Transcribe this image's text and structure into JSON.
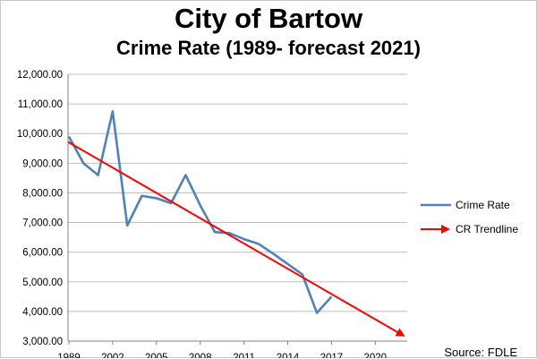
{
  "chart_data": {
    "type": "line",
    "title": "City of Bartow",
    "subtitle": "Crime Rate (1989- forecast 2021)",
    "source": "Source:  FDLE",
    "x_tick_labels": [
      "1989",
      "2002",
      "2005",
      "2008",
      "2011",
      "2014",
      "2017",
      "2020"
    ],
    "y_tick_labels": [
      "3,000.00",
      "4,000.00",
      "5,000.00",
      "6,000.00",
      "7,000.00",
      "8,000.00",
      "9,000.00",
      "10,000.00",
      "11,000.00",
      "12,000.00"
    ],
    "ylim": [
      3000,
      12000
    ],
    "grid": true,
    "legend_position": "right",
    "series": [
      {
        "name": "Crime Rate",
        "color": "#4f81bd",
        "values": [
          9900,
          9000,
          8600,
          10750,
          6900,
          7900,
          7820,
          7650,
          8600,
          7580,
          6680,
          6640,
          6440,
          6280,
          5950,
          5600,
          5250,
          3950,
          4500
        ]
      },
      {
        "name": "CR Trendline",
        "color": "#ff0000",
        "start_value": 9720,
        "end_value": 3200
      }
    ]
  }
}
